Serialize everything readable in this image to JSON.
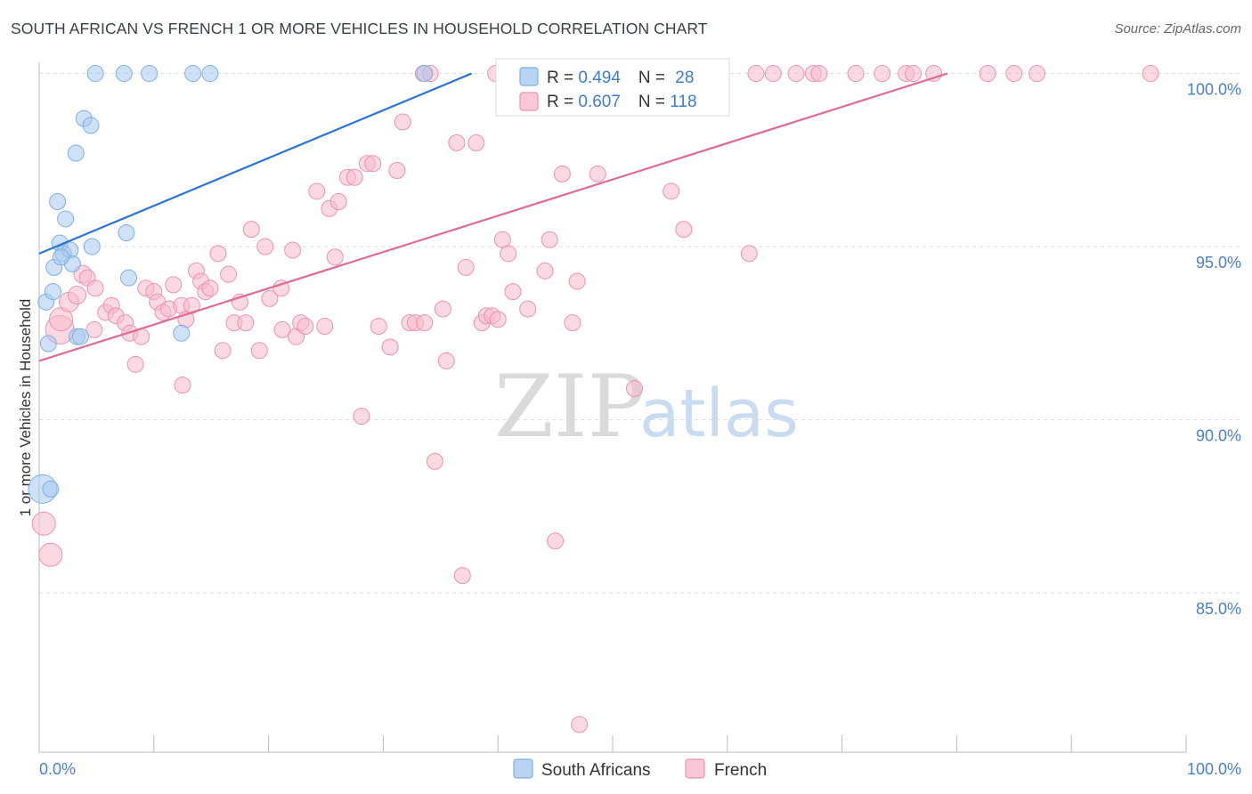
{
  "title": "SOUTH AFRICAN VS FRENCH 1 OR MORE VEHICLES IN HOUSEHOLD CORRELATION CHART",
  "source": "Source: ZipAtlas.com",
  "watermark": {
    "zip": "ZIP",
    "atlas": "atlas"
  },
  "legend": {
    "rows": [
      {
        "r_label": "R = ",
        "r_value": "0.494",
        "n_label": "N = ",
        "n_value": "28",
        "color": "#a8c8f0"
      },
      {
        "r_label": "R = ",
        "r_value": "0.607",
        "n_label": "N = ",
        "n_value": "118",
        "color": "#f7b9cc"
      }
    ]
  },
  "bottom_legend": [
    {
      "label": "South Africans",
      "color": "#a8c8f0"
    },
    {
      "label": "French",
      "color": "#f7b9cc"
    }
  ],
  "chart_data": {
    "type": "scatter",
    "ylabel": "1 or more Vehicles in Household",
    "xlim": [
      0,
      100
    ],
    "ylim": [
      80.4,
      100.4
    ],
    "x_tick_labels": [
      "0.0%",
      "100.0%"
    ],
    "y_ticks": [
      85,
      90,
      95,
      100
    ],
    "y_tick_labels": [
      "85.0%",
      "90.0%",
      "95.0%",
      "100.0%"
    ],
    "series": [
      {
        "name": "South Africans",
        "color": "#a8c8f0",
        "stroke": "#7eaee6",
        "trend": {
          "x": [
            0,
            37.7
          ],
          "y": [
            94.8,
            100.0
          ],
          "color": "#2a72d4"
        },
        "points": [
          [
            0.3,
            88.0,
            16
          ],
          [
            0.6,
            93.4,
            9
          ],
          [
            0.8,
            92.2,
            9
          ],
          [
            1.2,
            93.7,
            9
          ],
          [
            1.3,
            94.4,
            9
          ],
          [
            1.6,
            96.3,
            9
          ],
          [
            1.8,
            95.1,
            9
          ],
          [
            2.1,
            94.8,
            9
          ],
          [
            2.3,
            95.8,
            9
          ],
          [
            2.7,
            94.9,
            9
          ],
          [
            2.9,
            94.5,
            9
          ],
          [
            3.2,
            97.7,
            9
          ],
          [
            3.3,
            92.4,
            9
          ],
          [
            3.6,
            92.4,
            9
          ],
          [
            3.9,
            98.7,
            9
          ],
          [
            4.5,
            98.5,
            9
          ],
          [
            4.6,
            95.0,
            9
          ],
          [
            4.9,
            100.0,
            9
          ],
          [
            7.4,
            100.0,
            9
          ],
          [
            7.6,
            95.4,
            9
          ],
          [
            7.8,
            94.1,
            9
          ],
          [
            9.6,
            100.0,
            9
          ],
          [
            12.4,
            92.5,
            9
          ],
          [
            13.4,
            100.0,
            9
          ],
          [
            14.9,
            100.0,
            9
          ],
          [
            33.6,
            100.0,
            9
          ],
          [
            1.0,
            88.0,
            9
          ],
          [
            1.9,
            94.7,
            9
          ]
        ]
      },
      {
        "name": "French",
        "color": "#f7b9cc",
        "stroke": "#ec92ad",
        "trend": {
          "x": [
            0,
            79.2
          ],
          "y": [
            91.7,
            100.0
          ],
          "color": "#e06a96"
        },
        "points": [
          [
            0.4,
            87.0,
            13
          ],
          [
            1.0,
            86.1,
            13
          ],
          [
            1.8,
            92.6,
            16
          ],
          [
            1.9,
            92.9,
            13
          ],
          [
            2.6,
            93.4,
            11
          ],
          [
            3.3,
            93.6,
            10
          ],
          [
            3.8,
            94.2,
            10
          ],
          [
            4.2,
            94.1,
            9
          ],
          [
            4.8,
            92.6,
            9
          ],
          [
            4.9,
            93.8,
            9
          ],
          [
            5.8,
            93.1,
            9
          ],
          [
            6.3,
            93.3,
            9
          ],
          [
            6.7,
            93.0,
            9
          ],
          [
            7.5,
            92.8,
            9
          ],
          [
            7.9,
            92.5,
            9
          ],
          [
            8.4,
            91.6,
            9
          ],
          [
            8.9,
            92.4,
            9
          ],
          [
            9.3,
            93.8,
            9
          ],
          [
            10.0,
            93.7,
            9
          ],
          [
            10.3,
            93.4,
            9
          ],
          [
            10.8,
            93.1,
            9
          ],
          [
            11.3,
            93.2,
            9
          ],
          [
            11.7,
            93.9,
            9
          ],
          [
            12.4,
            93.3,
            9
          ],
          [
            12.5,
            91.0,
            9
          ],
          [
            12.8,
            92.9,
            9
          ],
          [
            13.3,
            93.3,
            9
          ],
          [
            13.7,
            94.3,
            9
          ],
          [
            14.1,
            94.0,
            9
          ],
          [
            14.5,
            93.7,
            9
          ],
          [
            14.9,
            93.8,
            9
          ],
          [
            15.6,
            94.8,
            9
          ],
          [
            16.0,
            92.0,
            9
          ],
          [
            16.5,
            94.2,
            9
          ],
          [
            17.0,
            92.8,
            9
          ],
          [
            17.5,
            93.4,
            9
          ],
          [
            18.0,
            92.8,
            9
          ],
          [
            18.5,
            95.5,
            9
          ],
          [
            19.2,
            92.0,
            9
          ],
          [
            19.7,
            95.0,
            9
          ],
          [
            20.1,
            93.5,
            9
          ],
          [
            21.1,
            93.8,
            9
          ],
          [
            21.2,
            92.6,
            9
          ],
          [
            22.1,
            94.9,
            9
          ],
          [
            22.4,
            92.4,
            9
          ],
          [
            22.8,
            92.8,
            9
          ],
          [
            23.2,
            92.7,
            9
          ],
          [
            24.2,
            96.6,
            9
          ],
          [
            24.9,
            92.7,
            9
          ],
          [
            25.3,
            96.1,
            9
          ],
          [
            25.8,
            94.7,
            9
          ],
          [
            26.1,
            96.3,
            9
          ],
          [
            26.9,
            97.0,
            9
          ],
          [
            27.5,
            97.0,
            9
          ],
          [
            28.1,
            90.1,
            9
          ],
          [
            28.6,
            97.4,
            9
          ],
          [
            29.1,
            97.4,
            9
          ],
          [
            29.6,
            92.7,
            9
          ],
          [
            30.6,
            92.1,
            9
          ],
          [
            31.2,
            97.2,
            9
          ],
          [
            31.7,
            98.6,
            9
          ],
          [
            32.3,
            92.8,
            9
          ],
          [
            32.8,
            92.8,
            9
          ],
          [
            33.6,
            92.8,
            9
          ],
          [
            33.5,
            100.0,
            9
          ],
          [
            34.1,
            100.0,
            9
          ],
          [
            34.5,
            88.8,
            9
          ],
          [
            35.2,
            93.2,
            9
          ],
          [
            35.5,
            91.7,
            9
          ],
          [
            36.4,
            98.0,
            9
          ],
          [
            36.9,
            85.5,
            9
          ],
          [
            37.2,
            94.4,
            9
          ],
          [
            38.1,
            98.0,
            9
          ],
          [
            38.6,
            92.8,
            9
          ],
          [
            39.0,
            93.0,
            9
          ],
          [
            39.5,
            93.0,
            9
          ],
          [
            40.0,
            92.9,
            9
          ],
          [
            40.4,
            95.2,
            9
          ],
          [
            40.9,
            94.8,
            9
          ],
          [
            41.3,
            93.7,
            9
          ],
          [
            42.0,
            100.0,
            9
          ],
          [
            42.6,
            93.2,
            9
          ],
          [
            44.1,
            94.3,
            9
          ],
          [
            44.5,
            95.2,
            9
          ],
          [
            45.0,
            86.5,
            9
          ],
          [
            45.6,
            97.1,
            9
          ],
          [
            46.0,
            100.0,
            9
          ],
          [
            46.5,
            92.8,
            9
          ],
          [
            46.9,
            94.0,
            9
          ],
          [
            47.1,
            81.2,
            9
          ],
          [
            48.0,
            100.0,
            9
          ],
          [
            48.7,
            97.1,
            9
          ],
          [
            50.5,
            100.0,
            9
          ],
          [
            51.0,
            100.0,
            9
          ],
          [
            51.9,
            90.9,
            9
          ],
          [
            52.5,
            100.0,
            9
          ],
          [
            54.0,
            100.0,
            9
          ],
          [
            55.1,
            96.6,
            9
          ],
          [
            56.2,
            95.5,
            9
          ],
          [
            57.5,
            100.0,
            9
          ],
          [
            59.0,
            100.0,
            9
          ],
          [
            61.9,
            94.8,
            9
          ],
          [
            62.5,
            100.0,
            9
          ],
          [
            64.0,
            100.0,
            9
          ],
          [
            66.0,
            100.0,
            9
          ],
          [
            67.5,
            100.0,
            9
          ],
          [
            68.0,
            100.0,
            9
          ],
          [
            71.2,
            100.0,
            9
          ],
          [
            73.5,
            100.0,
            9
          ],
          [
            75.6,
            100.0,
            9
          ],
          [
            76.2,
            100.0,
            9
          ],
          [
            78.0,
            100.0,
            9
          ],
          [
            82.7,
            100.0,
            9
          ],
          [
            85.0,
            100.0,
            9
          ],
          [
            87.0,
            100.0,
            9
          ],
          [
            96.9,
            100.0,
            9
          ],
          [
            39.8,
            100.0,
            9
          ],
          [
            44.0,
            100.0,
            9
          ]
        ]
      }
    ]
  }
}
